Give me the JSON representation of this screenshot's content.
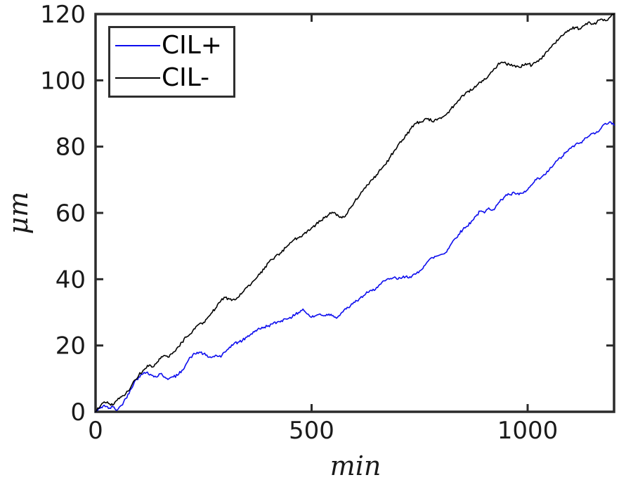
{
  "figure": {
    "background": "#ffffff",
    "axis_color": "#2b2b2b",
    "tick_label_color": "#1a1a1a"
  },
  "chart_data": {
    "type": "line",
    "title": "",
    "xlabel": "min",
    "ylabel": "μm",
    "xlim": [
      0,
      1200
    ],
    "ylim": [
      0,
      120
    ],
    "x_ticks": [
      0,
      500,
      1000
    ],
    "y_ticks": [
      0,
      20,
      40,
      60,
      80,
      100,
      120
    ],
    "grid": false,
    "legend_position": "top-left",
    "x": {
      "start": 0,
      "step": 10,
      "count": 121
    },
    "series": [
      {
        "name": "CIL+",
        "color": "#0d0dee",
        "values": [
          0,
          1,
          2,
          1,
          1.5,
          0.5,
          2,
          4,
          6.5,
          9,
          10.5,
          11.5,
          12,
          11,
          10.5,
          11.5,
          10.5,
          10,
          10.5,
          11,
          12.5,
          14.5,
          16.5,
          17.5,
          18,
          17.5,
          16.5,
          16.5,
          17,
          16.5,
          18,
          19.5,
          20.5,
          21,
          21.5,
          22.5,
          23.5,
          24.5,
          25,
          25.5,
          26,
          26.5,
          27,
          27.5,
          28,
          28.5,
          29,
          30,
          31,
          29.5,
          28.5,
          29,
          29.5,
          29,
          29.5,
          29,
          28.5,
          30,
          31,
          32,
          33,
          34,
          35,
          36,
          36.5,
          37.5,
          38.5,
          39.5,
          40,
          40.5,
          40,
          40.5,
          41,
          40.5,
          41.5,
          42.5,
          44,
          45.5,
          46.5,
          47,
          47.5,
          48,
          50,
          52,
          53.5,
          55,
          56,
          57.5,
          59,
          60.5,
          60,
          61.5,
          61,
          62.5,
          64,
          65.5,
          65.5,
          66,
          65.5,
          66,
          67,
          68.5,
          70,
          70.5,
          71.5,
          73,
          74.5,
          76,
          77,
          78.5,
          79.5,
          80.5,
          81,
          82,
          83,
          84,
          84.5,
          85.5,
          87,
          87.5,
          86.5
        ]
      },
      {
        "name": "CIL-",
        "color": "#000000",
        "values": [
          0,
          1.5,
          3,
          2.5,
          2,
          3.5,
          4.5,
          5.5,
          7,
          9.5,
          11,
          12.5,
          14,
          13.5,
          14.5,
          16,
          17,
          16.5,
          18,
          19.5,
          21,
          22.5,
          23.5,
          25,
          26.5,
          27,
          28.5,
          30,
          31.5,
          33.5,
          34.5,
          34,
          34,
          34.5,
          36,
          37.5,
          38.5,
          40,
          41.5,
          43,
          45,
          46,
          47.5,
          48,
          49.5,
          51,
          52,
          52.5,
          53.5,
          54.5,
          55.5,
          56.5,
          57.5,
          58.5,
          59.5,
          60,
          59.5,
          58.5,
          59.5,
          61.5,
          63.5,
          65,
          67,
          68.5,
          70,
          71.5,
          73,
          74.5,
          76.5,
          78.5,
          80.5,
          82,
          83.5,
          85.5,
          87,
          87.5,
          88,
          88.5,
          87.5,
          88,
          88.5,
          89.5,
          91,
          92.5,
          94,
          95.5,
          96.5,
          97,
          98,
          99.5,
          100.5,
          101.5,
          103,
          104.5,
          105.5,
          105,
          104.5,
          104.5,
          104,
          104.5,
          105,
          104.5,
          105.5,
          106.5,
          108,
          109.5,
          111,
          112,
          113.5,
          114.5,
          115.5,
          116,
          115.5,
          116.5,
          117.5,
          117,
          117.5,
          118.5,
          118,
          119,
          120
        ]
      }
    ],
    "render_hints": {
      "noise_seed": 42,
      "noise_amplitude": 0.45,
      "noise_subdiv": 4
    }
  }
}
